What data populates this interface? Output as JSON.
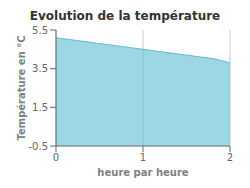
{
  "chart_data": {
    "type": "area",
    "title": "Evolution de la température",
    "xlabel": "heure par heure",
    "ylabel": "Température en °C",
    "x": [
      0,
      0.083,
      0.167,
      0.25,
      0.333,
      0.417,
      0.5,
      0.583,
      0.667,
      0.75,
      0.833,
      0.917,
      1.0,
      1.083,
      1.167,
      1.25,
      1.333,
      1.417,
      1.5,
      1.583,
      1.667,
      1.75,
      1.833,
      1.917,
      2.0
    ],
    "values": [
      5.1,
      5.05,
      5.0,
      4.95,
      4.9,
      4.85,
      4.8,
      4.75,
      4.7,
      4.65,
      4.6,
      4.55,
      4.5,
      4.45,
      4.4,
      4.35,
      4.3,
      4.25,
      4.2,
      4.15,
      4.1,
      4.05,
      4.0,
      3.9,
      3.8
    ],
    "color": "#5bbcd6",
    "xlim": [
      0,
      2
    ],
    "ylim": [
      -0.5,
      5.5
    ],
    "xticks": [
      0,
      1,
      2
    ],
    "yticks": [
      -0.5,
      1.5,
      3.5,
      5.5
    ],
    "grid": true
  }
}
